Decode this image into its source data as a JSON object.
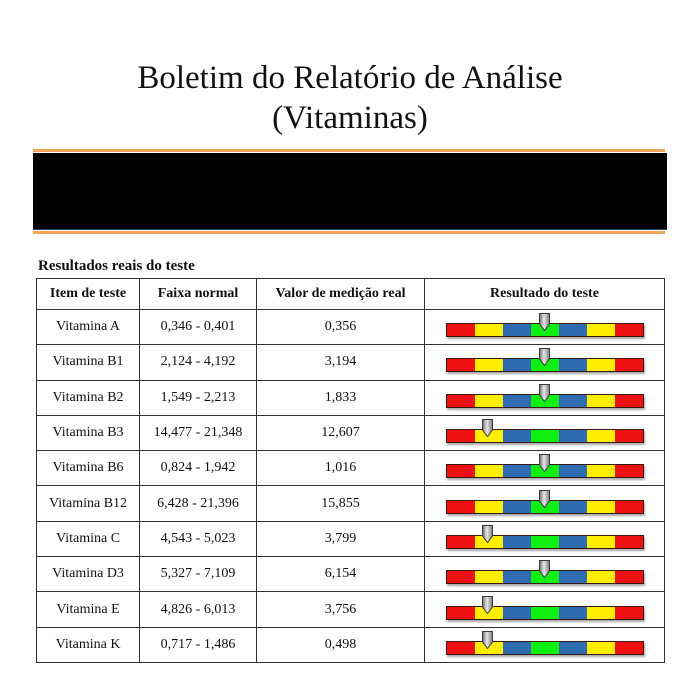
{
  "document": {
    "title_line1": "Boletim do Relatório de Análise",
    "title_line2": "(Vitaminas)",
    "section_heading": "Resultados reais do teste"
  },
  "table": {
    "headers": [
      "Item de teste",
      "Faixa normal",
      "Valor de medição real",
      "Resultado do teste"
    ],
    "gauge_segments": [
      "red",
      "yellow",
      "blue",
      "green",
      "blue",
      "yellow",
      "red"
    ],
    "colors": {
      "red": "#ee1111",
      "yellow": "#ffee00",
      "blue": "#2e6bb0",
      "green": "#11ee11",
      "marker": "#9a9a9a",
      "accent_line": "#f2a65a"
    },
    "rows": [
      {
        "item": "Vitamina A",
        "range": "0,346 - 0,401",
        "value": "0,356",
        "result": "normal",
        "marker_pct": 50
      },
      {
        "item": "Vitamina B1",
        "range": "2,124 - 4,192",
        "value": "3,194",
        "result": "normal",
        "marker_pct": 50
      },
      {
        "item": "Vitamina B2",
        "range": "1,549 - 2,213",
        "value": "1,833",
        "result": "normal",
        "marker_pct": 50
      },
      {
        "item": "Vitamina B3",
        "range": "14,477 - 21,348",
        "value": "12,607",
        "result": "low",
        "marker_pct": 21
      },
      {
        "item": "Vitamina B6",
        "range": "0,824 - 1,942",
        "value": "1,016",
        "result": "normal",
        "marker_pct": 50
      },
      {
        "item": "Vitamina B12",
        "range": "6,428 - 21,396",
        "value": "15,855",
        "result": "normal",
        "marker_pct": 50
      },
      {
        "item": "Vitamina C",
        "range": "4,543 - 5,023",
        "value": "3,799",
        "result": "low",
        "marker_pct": 21
      },
      {
        "item": "Vitamina D3",
        "range": "5,327 - 7,109",
        "value": "6,154",
        "result": "normal",
        "marker_pct": 50
      },
      {
        "item": "Vitamina E",
        "range": "4,826 - 6,013",
        "value": "3,756",
        "result": "low",
        "marker_pct": 21
      },
      {
        "item": "Vitamina K",
        "range": "0,717 - 1,486",
        "value": "0,498",
        "result": "low",
        "marker_pct": 21
      }
    ]
  }
}
